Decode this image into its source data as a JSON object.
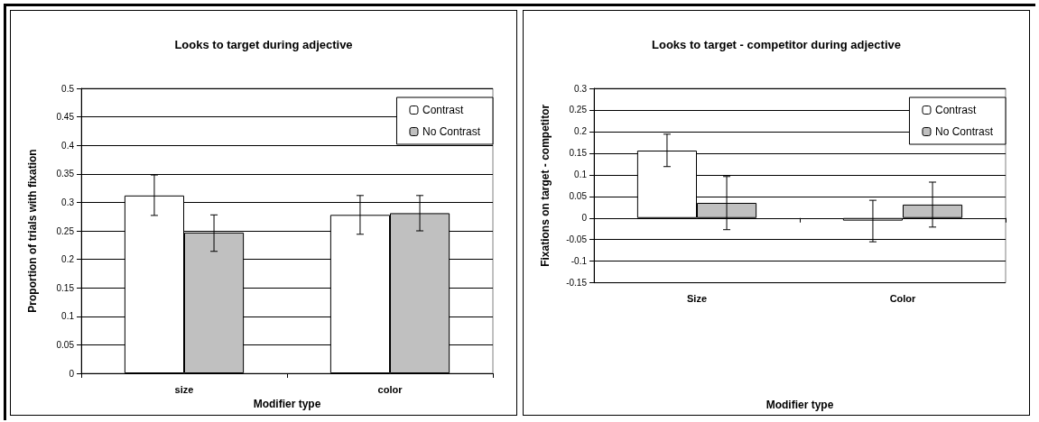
{
  "chart_data": [
    {
      "type": "bar",
      "title": "Looks to target during adjective",
      "xlabel": "Modifier type",
      "ylabel": "Proportion of trials with fixation",
      "categories": [
        "size",
        "color"
      ],
      "series": [
        {
          "name": "Contrast",
          "color": "#ffffff",
          "values": [
            0.312,
            0.278
          ],
          "errors": [
            [
              0.277,
              0.348
            ],
            [
              0.244,
              0.312
            ]
          ]
        },
        {
          "name": "No Contrast",
          "color": "#c0c0c0",
          "values": [
            0.247,
            0.281
          ],
          "errors": [
            [
              0.214,
              0.278
            ],
            [
              0.25,
              0.312
            ]
          ]
        }
      ],
      "ylim": [
        0,
        0.5
      ],
      "yticks": [
        0,
        0.05,
        0.1,
        0.15,
        0.2,
        0.25,
        0.3,
        0.35,
        0.4,
        0.45,
        0.5
      ],
      "grid": "y",
      "legend": "top right"
    },
    {
      "type": "bar",
      "title": "Looks to target - competitor during adjective",
      "xlabel": "Modifier type",
      "ylabel": "Fixations on target - competitor",
      "categories": [
        "Size",
        "Color"
      ],
      "series": [
        {
          "name": "Contrast",
          "color": "#ffffff",
          "values": [
            0.156,
            -0.006
          ],
          "errors": [
            [
              0.119,
              0.194
            ],
            [
              -0.055,
              0.041
            ]
          ]
        },
        {
          "name": "No Contrast",
          "color": "#c0c0c0",
          "values": [
            0.035,
            0.031
          ],
          "errors": [
            [
              -0.027,
              0.096
            ],
            [
              -0.021,
              0.083
            ]
          ]
        }
      ],
      "ylim": [
        -0.15,
        0.3
      ],
      "yticks": [
        -0.15,
        -0.1,
        -0.05,
        0,
        0.05,
        0.1,
        0.15,
        0.2,
        0.25,
        0.3
      ],
      "grid": "y",
      "legend": "top right"
    }
  ]
}
